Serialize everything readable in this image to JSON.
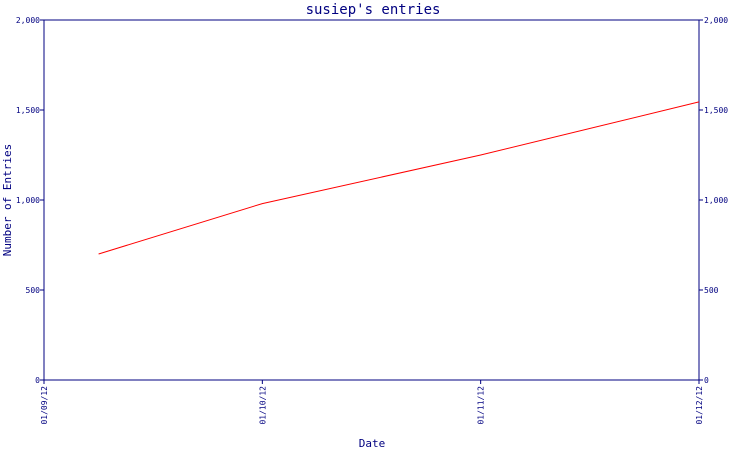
{
  "chart_data": {
    "type": "line",
    "title": "susiep's entries",
    "xlabel": "Date",
    "ylabel": "Number of Entries",
    "x_ticks": [
      "01/09/12",
      "01/10/12",
      "01/11/12",
      "01/12/12"
    ],
    "y_ticks": [
      "0",
      "500",
      "1,000",
      "1,500",
      "2,000"
    ],
    "ylim": [
      0,
      2000
    ],
    "xlim": [
      "2012-01-09",
      "2012-01-12"
    ],
    "grid": false,
    "colors": {
      "axis": "#000080",
      "line": "#ff0000",
      "text": "#000080"
    },
    "series": [
      {
        "x": [
          "2012-01-09 06:00",
          "2012-01-10",
          "2012-01-11",
          "2012-01-12"
        ],
        "values": [
          700,
          980,
          1250,
          1545
        ]
      }
    ]
  }
}
